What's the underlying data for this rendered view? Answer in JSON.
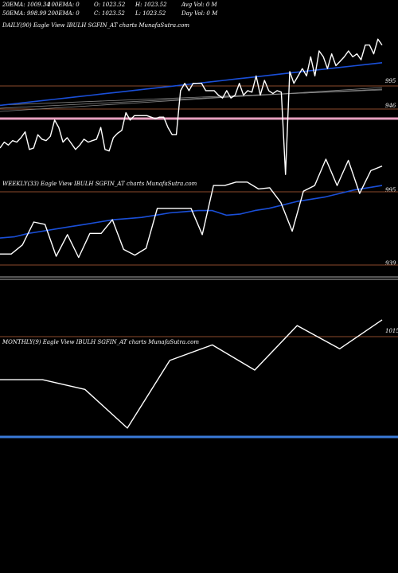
{
  "header": {
    "row1": [
      "20EMA: 1009.34",
      "100EMA: 0",
      "O: 1023.52",
      "H: 1023.52",
      "Avg Vol: 0  M"
    ],
    "row2": [
      "50EMA: 998.99",
      "200EMA: 0",
      "C: 1023.52",
      "L: 1023.52",
      "Day Vol: 0  M"
    ]
  },
  "colors": {
    "background": "#000000",
    "price_line": "#ffffff",
    "ema_line": "#1a4fd8",
    "level_line": "#8b4a2b",
    "pink_band": "#e8a0c0",
    "monthly_band": "#3a7ad8",
    "weekly_separator": "#aaaaaa",
    "gray_lines": "#888888"
  },
  "chart_data": [
    {
      "type": "line",
      "title": "DAILY(90) Eagle  View  IBULH              SGFIN_AT charts MunafaSutra.com",
      "ytick_labels": [
        "995",
        "946"
      ],
      "ylim": [
        933,
        1025
      ],
      "series": [
        {
          "values": [
            946,
            950,
            948,
            951,
            950,
            953,
            957,
            945,
            946,
            955,
            952,
            951,
            954,
            965,
            960,
            950,
            953,
            949,
            945,
            948,
            952,
            950,
            951,
            952,
            960,
            945,
            944,
            953,
            956,
            958,
            970,
            965,
            968,
            968,
            968,
            968,
            967,
            966,
            967,
            967,
            960,
            955,
            955,
            985,
            990,
            985,
            990,
            990,
            990,
            985,
            985,
            985,
            982,
            980,
            985,
            980,
            982,
            990,
            982,
            985,
            984,
            995,
            982,
            992,
            985,
            983,
            985,
            984,
            928,
            998,
            990,
            995,
            1000,
            995,
            1008,
            995,
            1012,
            1008,
            1000,
            1010,
            1002,
            1005,
            1008,
            1012,
            1008,
            1010,
            1006,
            1016,
            1016,
            1010,
            1020,
            1016
          ]
        },
        {
          "values": [
            975,
            976,
            977,
            978,
            979,
            980,
            981,
            982,
            983,
            984,
            985,
            986,
            987,
            988,
            989,
            990,
            991,
            992,
            993,
            994,
            995,
            996,
            997,
            998,
            999,
            1000,
            1001,
            1002,
            1003,
            1004
          ]
        }
      ]
    },
    {
      "type": "line",
      "title": "WEEKLY(33) Eagle  View  IBULH              SGFIN_AT charts MunafaSutra.com",
      "ytick_labels": [
        "995",
        "939"
      ],
      "ylim": [
        922,
        1030
      ],
      "series": [
        {
          "values": [
            940,
            940,
            948,
            968,
            966,
            938,
            957,
            937,
            958,
            958,
            970,
            944,
            939,
            945,
            980,
            980,
            980,
            980,
            957,
            1000,
            1000,
            1003,
            1003,
            997,
            998,
            985,
            960,
            995,
            1000,
            1023,
            1000,
            1022,
            993,
            1013,
            1017
          ]
        },
        {
          "values": [
            954,
            955,
            958,
            960,
            962,
            964,
            966,
            968,
            970,
            971,
            972,
            974,
            976,
            977,
            978,
            978,
            974,
            975,
            978,
            980,
            983,
            986,
            988,
            990,
            993,
            996,
            998,
            1000
          ]
        }
      ]
    },
    {
      "type": "line",
      "title": "MONTHLY(9) Eagle  View  IBULH              SGFIN_AT charts MunafaSutra.com",
      "ytick_labels": [
        "1015"
      ],
      "ylim": [
        960,
        1030
      ],
      "series": [
        {
          "values": [
            990,
            990,
            985,
            965,
            1000,
            1008,
            995,
            1018,
            1006,
            1021
          ]
        }
      ]
    }
  ]
}
